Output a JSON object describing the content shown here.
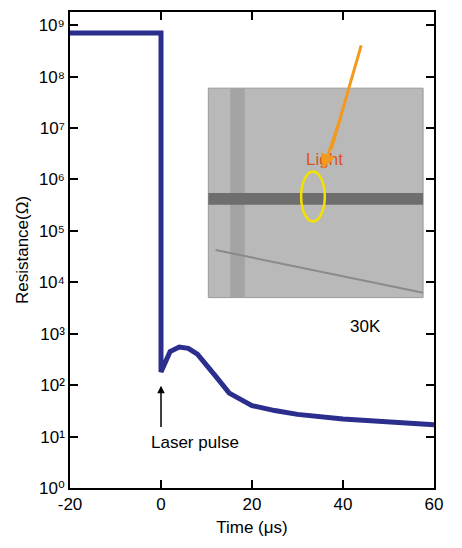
{
  "chart_data": {
    "type": "line",
    "x_label": "Time (μs)",
    "y_label": "Resistance(Ω)",
    "x": [
      -20,
      -10,
      0,
      0,
      1,
      2,
      4,
      6,
      8,
      10,
      12,
      15,
      20,
      25,
      30,
      40,
      50,
      60
    ],
    "values": [
      700000000,
      700000000,
      700000000,
      180,
      300,
      450,
      550,
      520,
      400,
      250,
      150,
      70,
      40,
      32,
      27,
      22,
      19,
      17
    ],
    "color": "#2b2e8c",
    "xlim": [
      -20,
      60
    ],
    "xticks": [
      -20,
      0,
      20,
      40,
      60
    ],
    "ylim": [
      1,
      1800000000
    ],
    "yticks": [
      {
        "value": 1,
        "label": "10⁰"
      },
      {
        "value": 10,
        "label": "10¹"
      },
      {
        "value": 100,
        "label": "10²"
      },
      {
        "value": 1000,
        "label": "10³"
      },
      {
        "value": 10000,
        "label": "10⁴"
      },
      {
        "value": 100000,
        "label": "10⁵"
      },
      {
        "value": 1000000,
        "label": "10⁶"
      },
      {
        "value": 10000000,
        "label": "10⁷"
      },
      {
        "value": 100000000,
        "label": "10⁸"
      },
      {
        "value": 1000000000,
        "label": "10⁹"
      }
    ],
    "log": "y",
    "grid": false,
    "annotations": [
      "Light",
      "30K",
      "Laser pulse"
    ]
  }
}
